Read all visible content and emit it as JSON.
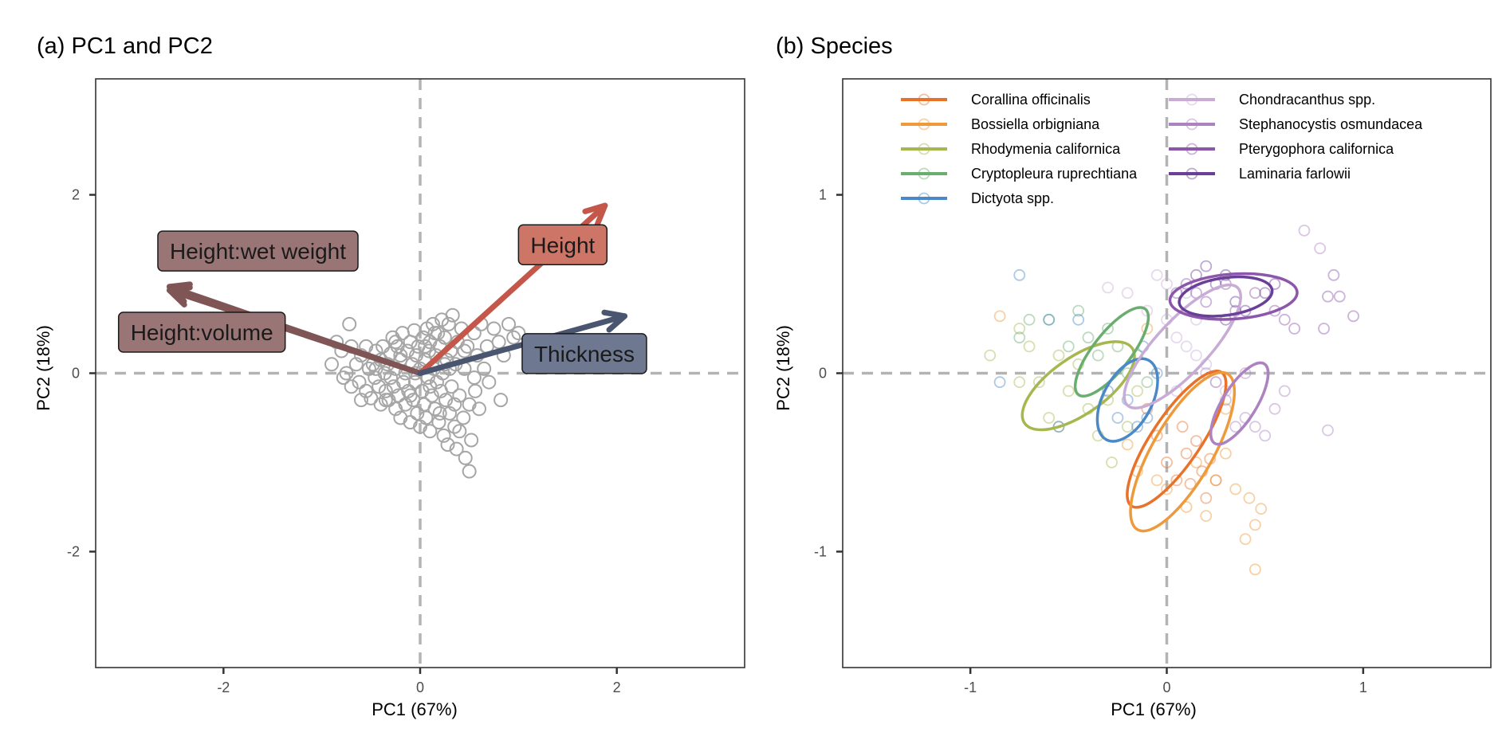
{
  "chart_data": [
    {
      "type": "scatter",
      "title": "(a) PC1 and PC2",
      "xlabel": "PC1 (67%)",
      "ylabel": "PC2 (18%)",
      "xlim": [
        -3.3,
        3.3
      ],
      "ylim": [
        -3.3,
        3.3
      ],
      "xticks": [
        -2,
        0,
        2
      ],
      "yticks": [
        -2,
        0,
        2
      ],
      "grid": false,
      "reference_lines": {
        "x": 0,
        "y": 0,
        "style": "dashed",
        "color": "#b3b3b3"
      },
      "point_color": "#a6a6a6",
      "points": [
        [
          -0.9,
          0.1
        ],
        [
          -0.85,
          0.35
        ],
        [
          -0.8,
          0.25
        ],
        [
          -0.78,
          -0.05
        ],
        [
          -0.75,
          0.0
        ],
        [
          -0.7,
          -0.15
        ],
        [
          -0.7,
          0.3
        ],
        [
          -0.72,
          0.55
        ],
        [
          -0.65,
          0.1
        ],
        [
          -0.62,
          -0.1
        ],
        [
          -0.6,
          0.2
        ],
        [
          -0.6,
          -0.3
        ],
        [
          -0.55,
          0.3
        ],
        [
          -0.55,
          -0.2
        ],
        [
          -0.52,
          0.05
        ],
        [
          -0.5,
          -0.28
        ],
        [
          -0.48,
          0.1
        ],
        [
          -0.46,
          -0.05
        ],
        [
          -0.45,
          0.25
        ],
        [
          -0.42,
          -0.15
        ],
        [
          -0.4,
          0.15
        ],
        [
          -0.4,
          -0.35
        ],
        [
          -0.38,
          0.3
        ],
        [
          -0.36,
          0.0
        ],
        [
          -0.35,
          -0.2
        ],
        [
          -0.33,
          0.1
        ],
        [
          -0.32,
          -0.3
        ],
        [
          -0.3,
          0.22
        ],
        [
          -0.3,
          -0.05
        ],
        [
          -0.28,
          0.4
        ],
        [
          -0.27,
          -0.15
        ],
        [
          -0.25,
          0.05
        ],
        [
          -0.25,
          -0.4
        ],
        [
          -0.23,
          0.3
        ],
        [
          -0.22,
          -0.25
        ],
        [
          -0.2,
          0.15
        ],
        [
          -0.2,
          -0.5
        ],
        [
          -0.18,
          0.45
        ],
        [
          -0.17,
          -0.1
        ],
        [
          -0.15,
          0.0
        ],
        [
          -0.15,
          -0.35
        ],
        [
          -0.13,
          0.25
        ],
        [
          -0.12,
          -0.2
        ],
        [
          -0.1,
          0.35
        ],
        [
          -0.1,
          -0.55
        ],
        [
          -0.08,
          0.1
        ],
        [
          -0.07,
          -0.3
        ],
        [
          -0.06,
          0.48
        ],
        [
          -0.05,
          -0.1
        ],
        [
          -0.04,
          0.2
        ],
        [
          -0.03,
          -0.45
        ],
        [
          -0.02,
          0.3
        ],
        [
          0.0,
          -0.6
        ],
        [
          0.0,
          0.05
        ],
        [
          0.02,
          -0.2
        ],
        [
          0.03,
          0.4
        ],
        [
          0.04,
          -0.35
        ],
        [
          0.05,
          0.15
        ],
        [
          0.06,
          -0.5
        ],
        [
          0.07,
          0.5
        ],
        [
          0.08,
          -0.05
        ],
        [
          0.09,
          0.25
        ],
        [
          0.1,
          -0.65
        ],
        [
          0.1,
          0.35
        ],
        [
          0.12,
          -0.25
        ],
        [
          0.13,
          0.55
        ],
        [
          0.14,
          0.05
        ],
        [
          0.15,
          -0.4
        ],
        [
          0.16,
          0.2
        ],
        [
          0.17,
          -0.1
        ],
        [
          0.18,
          0.45
        ],
        [
          0.19,
          -0.55
        ],
        [
          0.2,
          0.3
        ],
        [
          0.21,
          -0.2
        ],
        [
          0.22,
          0.6
        ],
        [
          0.23,
          0.0
        ],
        [
          0.24,
          -0.7
        ],
        [
          0.25,
          0.4
        ],
        [
          0.26,
          -0.3
        ],
        [
          0.27,
          0.15
        ],
        [
          0.28,
          -0.8
        ],
        [
          0.29,
          0.55
        ],
        [
          0.3,
          -0.45
        ],
        [
          0.31,
          0.25
        ],
        [
          0.32,
          -0.15
        ],
        [
          0.33,
          0.65
        ],
        [
          0.35,
          -0.6
        ],
        [
          0.36,
          0.1
        ],
        [
          0.37,
          -0.85
        ],
        [
          0.38,
          0.35
        ],
        [
          0.4,
          -0.25
        ],
        [
          0.42,
          0.5
        ],
        [
          0.44,
          -0.5
        ],
        [
          0.45,
          0.05
        ],
        [
          0.46,
          -0.95
        ],
        [
          0.48,
          0.3
        ],
        [
          0.5,
          -1.1
        ],
        [
          0.5,
          -0.35
        ],
        [
          0.52,
          -0.75
        ],
        [
          0.55,
          0.45
        ],
        [
          0.56,
          -0.2
        ],
        [
          0.58,
          0.2
        ],
        [
          0.6,
          -0.4
        ],
        [
          0.62,
          0.55
        ],
        [
          0.65,
          0.05
        ],
        [
          0.68,
          0.3
        ],
        [
          0.7,
          -0.1
        ],
        [
          0.75,
          0.5
        ],
        [
          0.8,
          0.35
        ],
        [
          0.82,
          -0.3
        ],
        [
          0.85,
          0.2
        ],
        [
          0.9,
          0.55
        ],
        [
          0.95,
          0.4
        ],
        [
          1.0,
          0.45
        ],
        [
          -0.05,
          0.0
        ],
        [
          0.1,
          -0.15
        ],
        [
          -0.2,
          0.2
        ],
        [
          0.25,
          0.1
        ],
        [
          -0.35,
          -0.3
        ],
        [
          0.15,
          0.45
        ],
        [
          0.35,
          -0.35
        ],
        [
          -0.1,
          -0.25
        ],
        [
          0.45,
          0.25
        ],
        [
          0.05,
          0.3
        ],
        [
          -0.25,
          0.35
        ],
        [
          0.2,
          -0.45
        ],
        [
          0.3,
          0.05
        ],
        [
          -0.45,
          0.05
        ],
        [
          0.55,
          -0.05
        ],
        [
          0.4,
          -0.65
        ]
      ],
      "arrows": [
        {
          "name": "Height:wet weight",
          "x": -2.55,
          "y": 0.97,
          "color": "#7f5556",
          "label_x": -1.65,
          "label_y": 1.37,
          "label_fill": "#9a7576"
        },
        {
          "name": "Height:volume",
          "x": -2.55,
          "y": 0.93,
          "color": "#7f5556",
          "label_x": -2.22,
          "label_y": 0.46,
          "label_fill": "#9a7576"
        },
        {
          "name": "Height",
          "x": 1.88,
          "y": 1.88,
          "color": "#c4574a",
          "label_x": 1.45,
          "label_y": 1.44,
          "label_fill": "#cd7667"
        },
        {
          "name": "Thickness",
          "x": 2.08,
          "y": 0.64,
          "color": "#4a5670",
          "label_x": 1.67,
          "label_y": 0.22,
          "label_fill": "#6e7891"
        }
      ]
    },
    {
      "type": "scatter",
      "title": "(b) Species",
      "xlabel": "PC1 (67%)",
      "ylabel": "PC2 (18%)",
      "xlim": [
        -1.65,
        1.65
      ],
      "ylim": [
        -1.65,
        1.65
      ],
      "xticks": [
        -1,
        0,
        1
      ],
      "yticks": [
        -1,
        0,
        1
      ],
      "grid": false,
      "reference_lines": {
        "x": 0,
        "y": 0,
        "style": "dashed",
        "color": "#b3b3b3"
      },
      "legend": "top-inside",
      "series": [
        {
          "name": "Corallina officinalis",
          "color": "#e8722a",
          "ellipse": {
            "cx": 0.05,
            "cy": -0.37,
            "rx": 0.43,
            "ry": 0.13,
            "angle_deg": -56
          },
          "points": [
            [
              -0.05,
              -0.35
            ],
            [
              0.0,
              -0.5
            ],
            [
              0.05,
              -0.6
            ],
            [
              0.1,
              -0.45
            ],
            [
              0.12,
              -0.62
            ],
            [
              0.15,
              -0.38
            ],
            [
              0.18,
              -0.55
            ],
            [
              0.2,
              -0.7
            ],
            [
              0.22,
              -0.48
            ],
            [
              0.25,
              -0.6
            ],
            [
              -0.1,
              -0.2
            ],
            [
              0.08,
              -0.3
            ]
          ]
        },
        {
          "name": "Bossiella orbigniana",
          "color": "#ee9a3a",
          "ellipse": {
            "cx": 0.08,
            "cy": -0.44,
            "rx": 0.48,
            "ry": 0.16,
            "angle_deg": -60
          },
          "points": [
            [
              -0.15,
              -0.55
            ],
            [
              -0.05,
              -0.6
            ],
            [
              0.1,
              -0.75
            ],
            [
              0.2,
              -0.8
            ],
            [
              0.25,
              -0.6
            ],
            [
              0.3,
              -0.45
            ],
            [
              0.35,
              -0.65
            ],
            [
              0.42,
              -0.7
            ],
            [
              0.45,
              -0.85
            ],
            [
              0.4,
              -0.93
            ],
            [
              0.45,
              -1.1
            ],
            [
              0.48,
              -0.76
            ],
            [
              -0.2,
              -0.4
            ],
            [
              0.0,
              -0.65
            ],
            [
              0.15,
              -0.5
            ],
            [
              -0.85,
              0.32
            ],
            [
              -0.1,
              0.25
            ],
            [
              0.3,
              -0.2
            ]
          ]
        },
        {
          "name": "Rhodymenia californica",
          "color": "#a6b74f",
          "ellipse": {
            "cx": -0.45,
            "cy": -0.07,
            "rx": 0.35,
            "ry": 0.15,
            "angle_deg": -35
          },
          "points": [
            [
              -0.9,
              0.1
            ],
            [
              -0.75,
              0.25
            ],
            [
              -0.7,
              0.15
            ],
            [
              -0.65,
              -0.05
            ],
            [
              -0.6,
              -0.25
            ],
            [
              -0.55,
              -0.3
            ],
            [
              -0.5,
              -0.1
            ],
            [
              -0.45,
              0.05
            ],
            [
              -0.4,
              -0.2
            ],
            [
              -0.35,
              -0.35
            ],
            [
              -0.3,
              -0.15
            ],
            [
              -0.28,
              -0.5
            ],
            [
              -0.2,
              -0.3
            ],
            [
              -0.15,
              -0.1
            ],
            [
              -0.55,
              0.1
            ],
            [
              -0.75,
              -0.05
            ]
          ]
        },
        {
          "name": "Cryptopleura ruprechtiana",
          "color": "#6aae6f",
          "ellipse": {
            "cx": -0.28,
            "cy": 0.12,
            "rx": 0.29,
            "ry": 0.1,
            "angle_deg": -52
          },
          "points": [
            [
              -0.7,
              0.3
            ],
            [
              -0.6,
              0.3
            ],
            [
              -0.45,
              0.35
            ],
            [
              -0.4,
              0.2
            ],
            [
              -0.35,
              0.1
            ],
            [
              -0.3,
              0.25
            ],
            [
              -0.25,
              0.15
            ],
            [
              -0.2,
              0.0
            ],
            [
              -0.15,
              0.1
            ],
            [
              -0.1,
              -0.05
            ],
            [
              -0.75,
              0.2
            ],
            [
              -0.5,
              0.15
            ]
          ]
        },
        {
          "name": "Dictyota spp.",
          "color": "#4a88c7",
          "ellipse": {
            "cx": -0.2,
            "cy": -0.15,
            "rx": 0.24,
            "ry": 0.13,
            "angle_deg": -62
          },
          "points": [
            [
              -0.75,
              0.55
            ],
            [
              -0.45,
              0.3
            ],
            [
              -0.55,
              -0.3
            ],
            [
              -0.3,
              -0.1
            ],
            [
              -0.25,
              -0.25
            ],
            [
              -0.2,
              -0.15
            ],
            [
              -0.15,
              -0.3
            ],
            [
              -0.1,
              -0.25
            ],
            [
              -0.05,
              0.0
            ],
            [
              -0.12,
              0.15
            ],
            [
              -0.85,
              -0.05
            ],
            [
              -0.6,
              0.3
            ]
          ]
        },
        {
          "name": "Chondracanthus spp.",
          "color": "#c8acd6",
          "ellipse": {
            "cx": 0.08,
            "cy": 0.15,
            "rx": 0.43,
            "ry": 0.14,
            "angle_deg": -47
          },
          "points": [
            [
              -0.3,
              0.48
            ],
            [
              -0.2,
              0.45
            ],
            [
              -0.1,
              0.35
            ],
            [
              0.0,
              0.3
            ],
            [
              0.05,
              0.2
            ],
            [
              0.1,
              0.15
            ],
            [
              0.15,
              0.1
            ],
            [
              0.2,
              0.05
            ],
            [
              0.25,
              -0.05
            ],
            [
              0.3,
              -0.1
            ],
            [
              0.0,
              0.5
            ],
            [
              -0.05,
              0.55
            ],
            [
              0.1,
              0.45
            ],
            [
              0.15,
              0.3
            ],
            [
              0.05,
              -0.1
            ]
          ]
        },
        {
          "name": "Stephanocystis osmundacea",
          "color": "#ad82c0",
          "ellipse": {
            "cx": 0.37,
            "cy": -0.17,
            "rx": 0.25,
            "ry": 0.09,
            "angle_deg": -58
          },
          "points": [
            [
              0.25,
              -0.05
            ],
            [
              0.3,
              -0.15
            ],
            [
              0.35,
              -0.3
            ],
            [
              0.4,
              -0.25
            ],
            [
              0.45,
              -0.3
            ],
            [
              0.5,
              -0.35
            ],
            [
              0.55,
              -0.2
            ],
            [
              0.6,
              -0.1
            ],
            [
              0.2,
              0.0
            ],
            [
              0.4,
              0.0
            ],
            [
              0.82,
              -0.32
            ],
            [
              0.7,
              0.8
            ],
            [
              0.78,
              0.7
            ]
          ]
        },
        {
          "name": "Pterygophora californica",
          "color": "#8c56aa",
          "ellipse": {
            "cx": 0.34,
            "cy": 0.43,
            "rx": 0.34,
            "ry": 0.12,
            "angle_deg": -4
          },
          "points": [
            [
              0.05,
              0.45
            ],
            [
              0.1,
              0.5
            ],
            [
              0.15,
              0.45
            ],
            [
              0.2,
              0.4
            ],
            [
              0.3,
              0.5
            ],
            [
              0.35,
              0.35
            ],
            [
              0.45,
              0.45
            ],
            [
              0.55,
              0.35
            ],
            [
              0.6,
              0.3
            ],
            [
              0.65,
              0.25
            ],
            [
              0.8,
              0.25
            ],
            [
              0.82,
              0.43
            ],
            [
              0.88,
              0.43
            ],
            [
              0.95,
              0.32
            ],
            [
              0.85,
              0.55
            ]
          ]
        },
        {
          "name": "Laminaria farlowii",
          "color": "#6a3f98",
          "ellipse": {
            "cx": 0.3,
            "cy": 0.43,
            "rx": 0.25,
            "ry": 0.1,
            "angle_deg": -8
          },
          "points": [
            [
              0.15,
              0.55
            ],
            [
              0.2,
              0.6
            ],
            [
              0.25,
              0.5
            ],
            [
              0.3,
              0.55
            ],
            [
              0.35,
              0.4
            ],
            [
              0.4,
              0.35
            ],
            [
              0.5,
              0.45
            ],
            [
              0.55,
              0.5
            ],
            [
              0.3,
              0.3
            ]
          ]
        }
      ]
    }
  ]
}
